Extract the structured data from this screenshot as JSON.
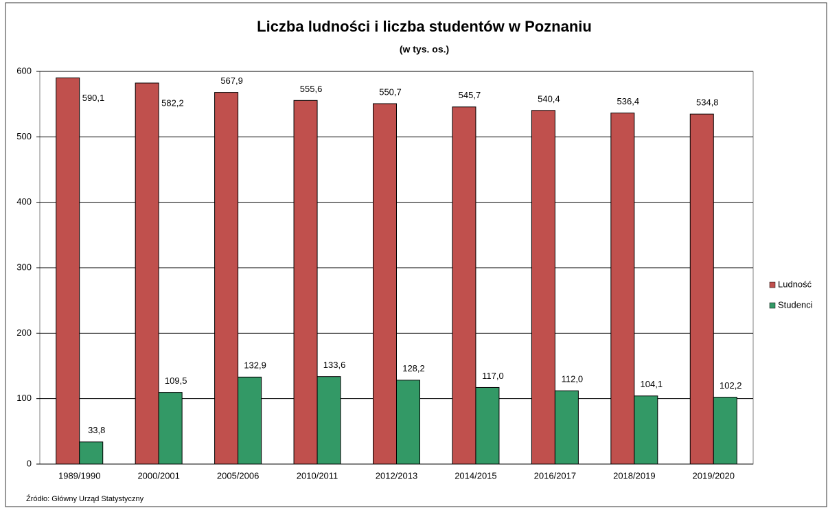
{
  "chart_data": {
    "type": "bar",
    "title": "Liczba ludności i liczba studentów w Poznaniu",
    "subtitle": "(w tys. os.)",
    "source": "Źródło: Główny Urząd Statystyczny",
    "categories": [
      "1989/1990",
      "2000/2001",
      "2005/2006",
      "2010/2011",
      "2012/2013",
      "2014/2015",
      "2016/2017",
      "2018/2019",
      "2019/2020"
    ],
    "series": [
      {
        "name": "Ludność",
        "color": "#c0504d",
        "values": [
          590.1,
          582.2,
          567.9,
          555.6,
          550.7,
          545.7,
          540.4,
          536.4,
          534.8
        ],
        "value_labels": [
          "590,1",
          "582,2",
          "567,9",
          "555,6",
          "550,7",
          "545,7",
          "540,4",
          "536,4",
          "534,8"
        ]
      },
      {
        "name": "Studenci",
        "color": "#339966",
        "values": [
          33.8,
          109.5,
          132.9,
          133.6,
          128.2,
          117.0,
          112.0,
          104.1,
          102.2
        ],
        "value_labels": [
          "33,8",
          "109,5",
          "132,9",
          "133,6",
          "128,2",
          "117,0",
          "112,0",
          "104,1",
          "102,2"
        ]
      }
    ],
    "ylim": [
      0,
      600
    ],
    "yticks": [
      0,
      100,
      200,
      300,
      400,
      500,
      600
    ],
    "grid": true,
    "legend": "right"
  }
}
